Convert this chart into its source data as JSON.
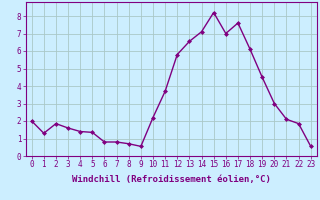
{
  "x": [
    0,
    1,
    2,
    3,
    4,
    5,
    6,
    7,
    8,
    9,
    10,
    11,
    12,
    13,
    14,
    15,
    16,
    17,
    18,
    19,
    20,
    21,
    22,
    23
  ],
  "y": [
    2.0,
    1.3,
    1.85,
    1.6,
    1.4,
    1.35,
    0.8,
    0.8,
    0.7,
    0.55,
    2.2,
    3.7,
    5.8,
    6.55,
    7.1,
    8.2,
    7.0,
    7.6,
    6.1,
    4.5,
    3.0,
    2.1,
    1.85,
    0.55
  ],
  "line_color": "#800080",
  "marker": "D",
  "marker_size": 2,
  "line_width": 1.0,
  "bg_color": "#cceeff",
  "grid_color": "#aac8c8",
  "xlabel": "Windchill (Refroidissement éolien,°C)",
  "ylabel_ticks": [
    0,
    1,
    2,
    3,
    4,
    5,
    6,
    7,
    8
  ],
  "xlim": [
    -0.5,
    23.5
  ],
  "ylim": [
    0,
    8.8
  ],
  "tick_color": "#800080",
  "label_fontsize": 5.5,
  "xlabel_fontsize": 6.5
}
